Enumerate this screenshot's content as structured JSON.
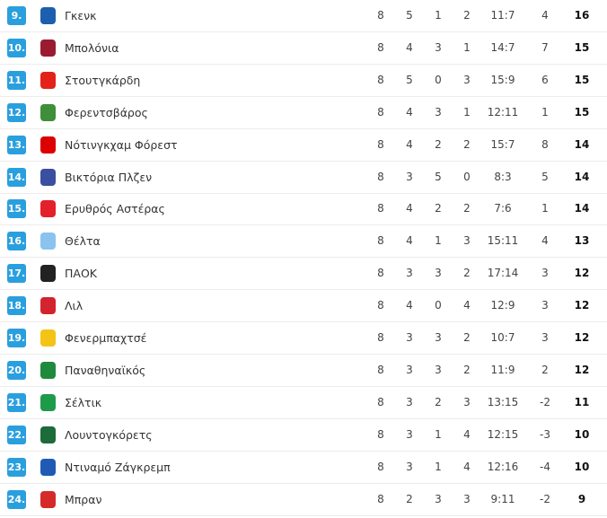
{
  "colors": {
    "position_badge": "#2a9fde"
  },
  "rows": [
    {
      "pos": "9.",
      "team": "Γκενκ",
      "logo": "genk-logo",
      "logo_color": "#1b5fae",
      "p": "8",
      "w": "5",
      "d": "1",
      "l": "2",
      "goals": "11:7",
      "diff": "4",
      "pts": "16"
    },
    {
      "pos": "10.",
      "team": "Μπολόνια",
      "logo": "bologna-logo",
      "logo_color": "#9b1b30",
      "p": "8",
      "w": "4",
      "d": "3",
      "l": "1",
      "goals": "14:7",
      "diff": "7",
      "pts": "15"
    },
    {
      "pos": "11.",
      "team": "Στουτγκάρδη",
      "logo": "stuttgart-logo",
      "logo_color": "#e32219",
      "p": "8",
      "w": "5",
      "d": "0",
      "l": "3",
      "goals": "15:9",
      "diff": "6",
      "pts": "15"
    },
    {
      "pos": "12.",
      "team": "Φερεντσβάρος",
      "logo": "ferencvaros-logo",
      "logo_color": "#3e8e3a",
      "p": "8",
      "w": "4",
      "d": "3",
      "l": "1",
      "goals": "12:11",
      "diff": "1",
      "pts": "15"
    },
    {
      "pos": "13.",
      "team": "Νότινγκχαμ Φόρεστ",
      "logo": "nottingham-forest-logo",
      "logo_color": "#dd0000",
      "p": "8",
      "w": "4",
      "d": "2",
      "l": "2",
      "goals": "15:7",
      "diff": "8",
      "pts": "14"
    },
    {
      "pos": "14.",
      "team": "Βικτόρια Πλζεν",
      "logo": "viktoria-plzen-logo",
      "logo_color": "#3b4fa0",
      "p": "8",
      "w": "3",
      "d": "5",
      "l": "0",
      "goals": "8:3",
      "diff": "5",
      "pts": "14"
    },
    {
      "pos": "15.",
      "team": "Ερυθρός Αστέρας",
      "logo": "red-star-logo",
      "logo_color": "#e4202a",
      "p": "8",
      "w": "4",
      "d": "2",
      "l": "2",
      "goals": "7:6",
      "diff": "1",
      "pts": "14"
    },
    {
      "pos": "16.",
      "team": "Θέλτα",
      "logo": "celta-logo",
      "logo_color": "#8ac3ee",
      "p": "8",
      "w": "4",
      "d": "1",
      "l": "3",
      "goals": "15:11",
      "diff": "4",
      "pts": "13"
    },
    {
      "pos": "17.",
      "team": "ΠΑΟΚ",
      "logo": "paok-logo",
      "logo_color": "#222222",
      "p": "8",
      "w": "3",
      "d": "3",
      "l": "2",
      "goals": "17:14",
      "diff": "3",
      "pts": "12"
    },
    {
      "pos": "18.",
      "team": "Λιλ",
      "logo": "lille-logo",
      "logo_color": "#d3232e",
      "p": "8",
      "w": "4",
      "d": "0",
      "l": "4",
      "goals": "12:9",
      "diff": "3",
      "pts": "12"
    },
    {
      "pos": "19.",
      "team": "Φενερμπαχτσέ",
      "logo": "fenerbahce-logo",
      "logo_color": "#f3c316",
      "p": "8",
      "w": "3",
      "d": "3",
      "l": "2",
      "goals": "10:7",
      "diff": "3",
      "pts": "12"
    },
    {
      "pos": "20.",
      "team": "Παναθηναϊκός",
      "logo": "panathinaikos-logo",
      "logo_color": "#1f8a3c",
      "p": "8",
      "w": "3",
      "d": "3",
      "l": "2",
      "goals": "11:9",
      "diff": "2",
      "pts": "12"
    },
    {
      "pos": "21.",
      "team": "Σέλτικ",
      "logo": "celtic-logo",
      "logo_color": "#1e9a4b",
      "p": "8",
      "w": "3",
      "d": "2",
      "l": "3",
      "goals": "13:15",
      "diff": "-2",
      "pts": "11"
    },
    {
      "pos": "22.",
      "team": "Λουντογκόρετς",
      "logo": "ludogorets-logo",
      "logo_color": "#1c6b3a",
      "p": "8",
      "w": "3",
      "d": "1",
      "l": "4",
      "goals": "12:15",
      "diff": "-3",
      "pts": "10"
    },
    {
      "pos": "23.",
      "team": "Ντιναμό Ζάγκρεμπ",
      "logo": "dinamo-zagreb-logo",
      "logo_color": "#1f5bb5",
      "p": "8",
      "w": "3",
      "d": "1",
      "l": "4",
      "goals": "12:16",
      "diff": "-4",
      "pts": "10"
    },
    {
      "pos": "24.",
      "team": "Μπραν",
      "logo": "brann-logo",
      "logo_color": "#d42a2a",
      "p": "8",
      "w": "2",
      "d": "3",
      "l": "3",
      "goals": "9:11",
      "diff": "-2",
      "pts": "9"
    }
  ]
}
